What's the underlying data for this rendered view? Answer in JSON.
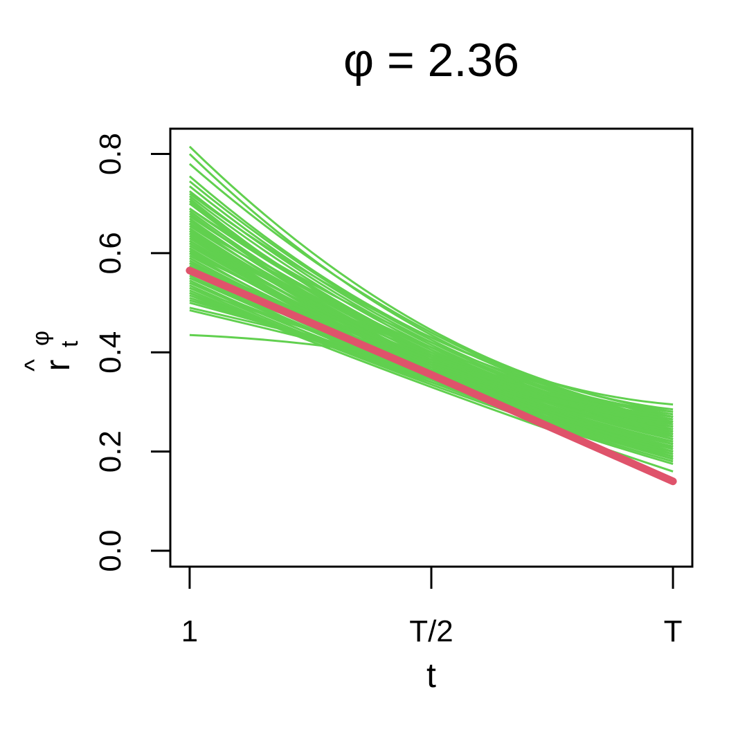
{
  "chart_data": {
    "type": "line",
    "title": "φ = 2.36",
    "xlabel": "t",
    "ylabel": {
      "base": "r",
      "accent": "^",
      "superscript": "φ",
      "subscript": "t"
    },
    "x_ticks": [
      "1",
      "T/2",
      "T"
    ],
    "x_tick_positions": [
      0,
      0.5,
      1
    ],
    "y_ticks": [
      "0.0",
      "0.2",
      "0.4",
      "0.6",
      "0.8"
    ],
    "y_tick_values": [
      0.0,
      0.2,
      0.4,
      0.6,
      0.8
    ],
    "xlim": [
      -0.04,
      1.04
    ],
    "ylim": [
      -0.032,
      0.851
    ],
    "grid": false,
    "legend": "none",
    "colors": {
      "simulated": "#61D04F",
      "reference": "#DF536B",
      "axis": "#000000"
    },
    "simulated_series_note": "green curves, each defined by values at t = 1, T/2, T",
    "simulated_series": [
      [
        0.815,
        0.445,
        0.285
      ],
      [
        0.8,
        0.435,
        0.28
      ],
      [
        0.78,
        0.44,
        0.27
      ],
      [
        0.755,
        0.43,
        0.295
      ],
      [
        0.745,
        0.425,
        0.265
      ],
      [
        0.735,
        0.42,
        0.26
      ],
      [
        0.725,
        0.415,
        0.255
      ],
      [
        0.715,
        0.41,
        0.25
      ],
      [
        0.705,
        0.405,
        0.26
      ],
      [
        0.7,
        0.4,
        0.245
      ],
      [
        0.69,
        0.405,
        0.24
      ],
      [
        0.685,
        0.395,
        0.25
      ],
      [
        0.675,
        0.4,
        0.235
      ],
      [
        0.67,
        0.39,
        0.245
      ],
      [
        0.665,
        0.395,
        0.23
      ],
      [
        0.66,
        0.385,
        0.24
      ],
      [
        0.655,
        0.39,
        0.225
      ],
      [
        0.65,
        0.385,
        0.235
      ],
      [
        0.645,
        0.38,
        0.22
      ],
      [
        0.64,
        0.385,
        0.23
      ],
      [
        0.635,
        0.375,
        0.215
      ],
      [
        0.63,
        0.38,
        0.225
      ],
      [
        0.625,
        0.37,
        0.21
      ],
      [
        0.62,
        0.375,
        0.22
      ],
      [
        0.615,
        0.37,
        0.205
      ],
      [
        0.61,
        0.365,
        0.215
      ],
      [
        0.605,
        0.37,
        0.2
      ],
      [
        0.6,
        0.36,
        0.21
      ],
      [
        0.595,
        0.365,
        0.195
      ],
      [
        0.59,
        0.36,
        0.205
      ],
      [
        0.585,
        0.355,
        0.19
      ],
      [
        0.58,
        0.36,
        0.2
      ],
      [
        0.575,
        0.355,
        0.185
      ],
      [
        0.57,
        0.35,
        0.195
      ],
      [
        0.565,
        0.355,
        0.19
      ],
      [
        0.56,
        0.35,
        0.2
      ],
      [
        0.555,
        0.345,
        0.185
      ],
      [
        0.55,
        0.35,
        0.195
      ],
      [
        0.545,
        0.34,
        0.18
      ],
      [
        0.54,
        0.345,
        0.19
      ],
      [
        0.535,
        0.34,
        0.185
      ],
      [
        0.53,
        0.335,
        0.175
      ],
      [
        0.525,
        0.34,
        0.2
      ],
      [
        0.52,
        0.345,
        0.21
      ],
      [
        0.515,
        0.35,
        0.22
      ],
      [
        0.51,
        0.355,
        0.215
      ],
      [
        0.505,
        0.36,
        0.205
      ],
      [
        0.5,
        0.365,
        0.225
      ],
      [
        0.49,
        0.37,
        0.23
      ],
      [
        0.485,
        0.365,
        0.235
      ],
      [
        0.52,
        0.33,
        0.16
      ],
      [
        0.435,
        0.38,
        0.255
      ],
      [
        0.72,
        0.43,
        0.28
      ],
      [
        0.69,
        0.42,
        0.27
      ],
      [
        0.66,
        0.41,
        0.26
      ],
      [
        0.63,
        0.4,
        0.25
      ],
      [
        0.6,
        0.39,
        0.24
      ],
      [
        0.58,
        0.385,
        0.245
      ],
      [
        0.55,
        0.375,
        0.24
      ],
      [
        0.53,
        0.37,
        0.25
      ],
      [
        0.71,
        0.39,
        0.22
      ],
      [
        0.68,
        0.38,
        0.21
      ],
      [
        0.65,
        0.37,
        0.2
      ],
      [
        0.62,
        0.36,
        0.19
      ],
      [
        0.61,
        0.38,
        0.265
      ],
      [
        0.59,
        0.375,
        0.26
      ],
      [
        0.57,
        0.37,
        0.255
      ],
      [
        0.54,
        0.36,
        0.23
      ],
      [
        0.675,
        0.41,
        0.275
      ],
      [
        0.645,
        0.395,
        0.27
      ],
      [
        0.625,
        0.39,
        0.265
      ],
      [
        0.605,
        0.385,
        0.27
      ],
      [
        0.7,
        0.395,
        0.215
      ],
      [
        0.66,
        0.375,
        0.2
      ],
      [
        0.64,
        0.365,
        0.195
      ],
      [
        0.58,
        0.35,
        0.185
      ]
    ],
    "reference_series": {
      "values": [
        0.565,
        0.355,
        0.14
      ],
      "description": "thick red line"
    }
  }
}
